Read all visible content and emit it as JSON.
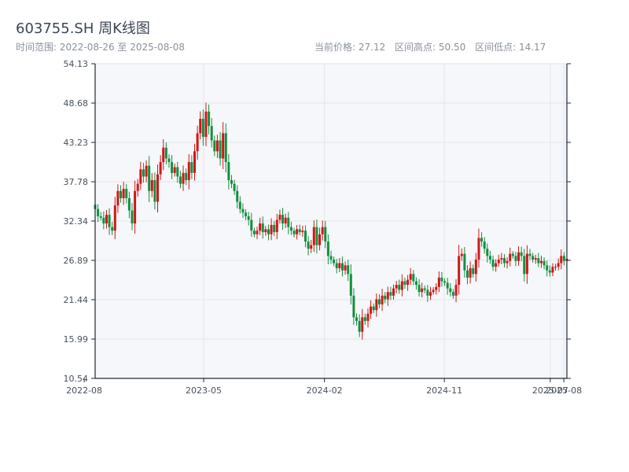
{
  "header": {
    "title": "603755.SH 周K线图",
    "date_range": "时间范围: 2022-08-26 至 2025-08-08",
    "current_price": "当前价格: 27.12",
    "range_high": "区间高点: 50.50",
    "range_low": "区间低点: 14.17"
  },
  "colors": {
    "up": "#d11616",
    "down": "#138f3f",
    "plot_bg": "#f5f7fa",
    "grid": "#e3e6ea",
    "axis": "#1f2a37"
  },
  "chart_data": {
    "type": "candlestick",
    "title": "603755.SH 周K线图",
    "xlabel": "",
    "ylabel": "",
    "ylim": [
      10.54,
      54.13
    ],
    "yticks": [
      10.54,
      15.99,
      21.44,
      26.89,
      32.34,
      37.78,
      43.23,
      48.68,
      54.13
    ],
    "xticks": [
      "2022-08",
      "2023-05",
      "2024-02",
      "2024-11",
      "2025-07",
      "2025-08"
    ],
    "grid": true,
    "date_start": "2022-08-26",
    "date_end": "2025-08-08",
    "interval": "weekly",
    "close": [
      34.0,
      33.0,
      32.8,
      32.0,
      33.2,
      31.5,
      31.0,
      34.5,
      36.5,
      35.5,
      36.8,
      35.5,
      33.8,
      32.0,
      36.5,
      37.5,
      39.5,
      38.5,
      40.0,
      36.5,
      38.0,
      35.0,
      38.8,
      40.5,
      42.5,
      41.0,
      40.5,
      39.0,
      39.8,
      38.5,
      37.5,
      39.0,
      38.0,
      40.5,
      39.0,
      42.0,
      44.5,
      46.5,
      44.0,
      47.5,
      45.5,
      43.5,
      42.0,
      43.5,
      41.0,
      44.5,
      40.5,
      38.0,
      37.5,
      36.5,
      35.0,
      34.0,
      33.5,
      33.0,
      32.5,
      31.0,
      30.5,
      31.0,
      32.0,
      30.8,
      31.2,
      30.5,
      31.8,
      30.8,
      32.5,
      33.2,
      32.0,
      32.8,
      31.5,
      31.0,
      30.5,
      31.2,
      30.8,
      31.0,
      29.5,
      28.5,
      29.0,
      31.5,
      29.0,
      30.5,
      31.5,
      29.5,
      27.5,
      27.0,
      26.5,
      25.8,
      26.5,
      25.5,
      26.2,
      25.0,
      22.0,
      19.0,
      18.5,
      17.0,
      19.0,
      18.5,
      19.5,
      20.5,
      20.0,
      21.5,
      20.8,
      22.0,
      21.5,
      22.5,
      22.0,
      23.0,
      23.5,
      22.8,
      24.0,
      23.5,
      24.2,
      25.0,
      24.0,
      23.5,
      22.5,
      23.0,
      22.8,
      22.0,
      22.5,
      22.8,
      23.2,
      24.5,
      24.0,
      23.8,
      23.0,
      22.5,
      22.0,
      23.5,
      27.5,
      27.8,
      25.5,
      24.5,
      25.8,
      25.0,
      27.0,
      30.0,
      29.5,
      28.5,
      27.5,
      27.0,
      26.0,
      26.5,
      27.0,
      27.2,
      26.5,
      26.8,
      27.8,
      27.5,
      26.8,
      28.0,
      27.5,
      25.0,
      27.8,
      27.5,
      27.0,
      27.2,
      26.5,
      26.8,
      26.2,
      25.5,
      25.2,
      26.0,
      26.0,
      26.5,
      27.5,
      26.8,
      27.12
    ]
  }
}
